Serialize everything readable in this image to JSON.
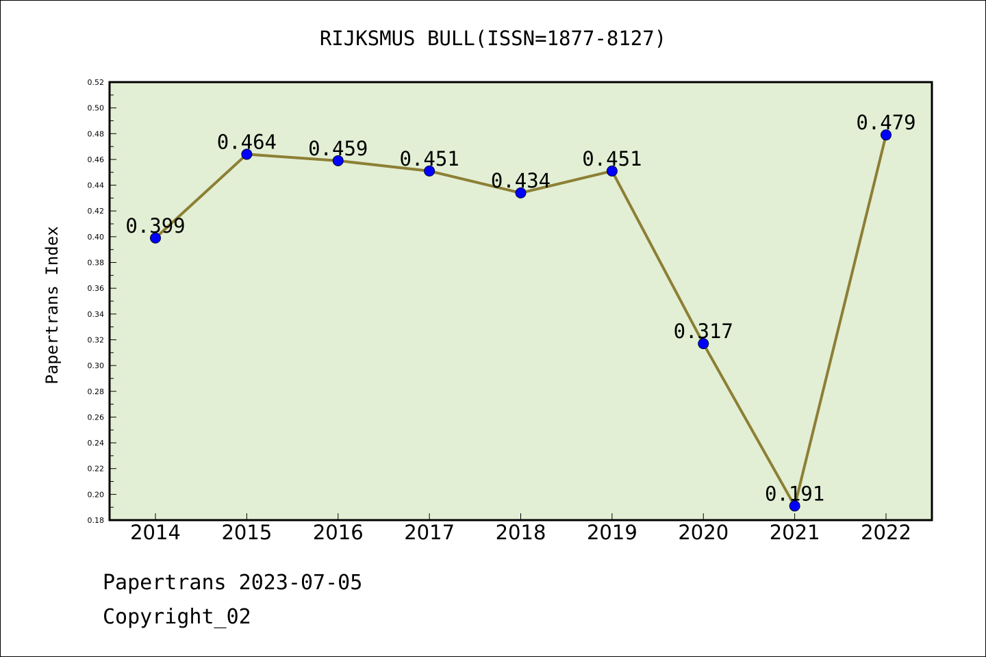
{
  "colors": {
    "plot_background": "#e2efd4",
    "line": "#8c7f35",
    "marker": "#0000ff",
    "frame": "#000000"
  },
  "chart_data": {
    "type": "line",
    "title": "RIJKSMUS BULL(ISSN=1877-8127)",
    "xlabel": "",
    "ylabel": "Papertrans Index",
    "categories": [
      "2014",
      "2015",
      "2016",
      "2017",
      "2018",
      "2019",
      "2020",
      "2021",
      "2022"
    ],
    "series": [
      {
        "values": [
          0.399,
          0.464,
          0.459,
          0.451,
          0.434,
          0.451,
          0.317,
          0.191,
          0.479
        ],
        "data_labels": [
          "0.399",
          "0.464",
          "0.459",
          "0.451",
          "0.434",
          "0.451",
          "0.317",
          "0.191",
          "0.479"
        ]
      }
    ],
    "ylim": [
      0.18,
      0.52
    ],
    "yticks": [
      "0.18",
      "0.20",
      "0.22",
      "0.24",
      "0.26",
      "0.28",
      "0.30",
      "0.32",
      "0.34",
      "0.36",
      "0.38",
      "0.40",
      "0.42",
      "0.44",
      "0.46",
      "0.48",
      "0.50",
      "0.52"
    ],
    "grid": false,
    "legend": "none"
  },
  "footer": {
    "line1": "Papertrans 2023-07-05",
    "line2": "Copyright_02"
  }
}
